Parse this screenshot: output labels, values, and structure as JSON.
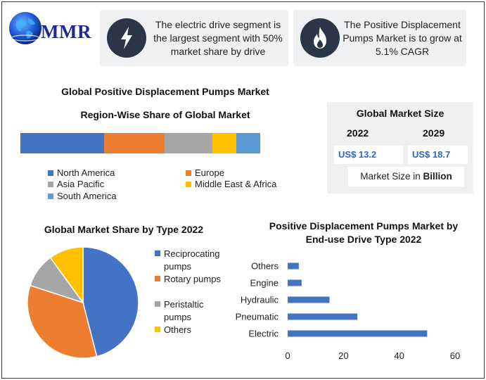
{
  "brand": {
    "name": "MMR",
    "icon": "globe-icon"
  },
  "callouts": [
    {
      "icon": "lightning-bolt-icon",
      "text": "The electric drive segment is the largest segment with 50% market share by drive"
    },
    {
      "icon": "flame-icon",
      "text": "The Positive Displacement Pumps Market is to grow at 5.1% CAGR"
    }
  ],
  "colors": {
    "blue": "#4472c4",
    "orange": "#ed7d31",
    "gray": "#a5a5a5",
    "yellow": "#ffc000",
    "lightblue": "#5b9bd5",
    "dark": "#2a3547",
    "value_blue": "#2a66c6"
  },
  "market_size": {
    "title": "Global Market Size",
    "years": [
      {
        "year": "2022",
        "value": "US$ 13.2"
      },
      {
        "year": "2029",
        "value": "US$ 18.7"
      }
    ],
    "unit_prefix": "Market Size in ",
    "unit_bold": "Billion"
  },
  "chart_data": [
    {
      "type": "bar",
      "orientation": "horizontal-stacked",
      "title": "Global Positive Displacement Pumps Market",
      "subtitle": "Region-Wise Share of Global Market",
      "series": [
        {
          "name": "North America",
          "value": 35,
          "color": "#4472c4"
        },
        {
          "name": "Europe",
          "value": 25,
          "color": "#ed7d31"
        },
        {
          "name": "Asia Pacific",
          "value": 20,
          "color": "#a5a5a5"
        },
        {
          "name": "Middle East & Africa",
          "value": 10,
          "color": "#ffc000"
        },
        {
          "name": "South America",
          "value": 10,
          "color": "#5b9bd5"
        }
      ],
      "legend": "bottom"
    },
    {
      "type": "pie",
      "title": "Global Market Share by Type 2022",
      "slices": [
        {
          "name": "Reciprocating pumps",
          "value": 46,
          "color": "#4472c4"
        },
        {
          "name": "Rotary pumps",
          "value": 34,
          "color": "#ed7d31"
        },
        {
          "name": "Peristaltic pumps",
          "value": 10,
          "color": "#a5a5a5"
        },
        {
          "name": "Others",
          "value": 10,
          "color": "#ffc000"
        }
      ],
      "legend": "right"
    },
    {
      "type": "bar",
      "orientation": "horizontal",
      "title": "Positive Displacement Pumps Market by End-use Drive Type 2022",
      "categories": [
        "Others",
        "Engine",
        "Hydraulic",
        "Pneumatic",
        "Electric"
      ],
      "values": [
        4,
        5,
        15,
        25,
        50
      ],
      "xlim": [
        0,
        60
      ],
      "xticks": [
        0,
        20,
        40,
        60
      ],
      "color": "#4472c4",
      "grid": false
    }
  ]
}
